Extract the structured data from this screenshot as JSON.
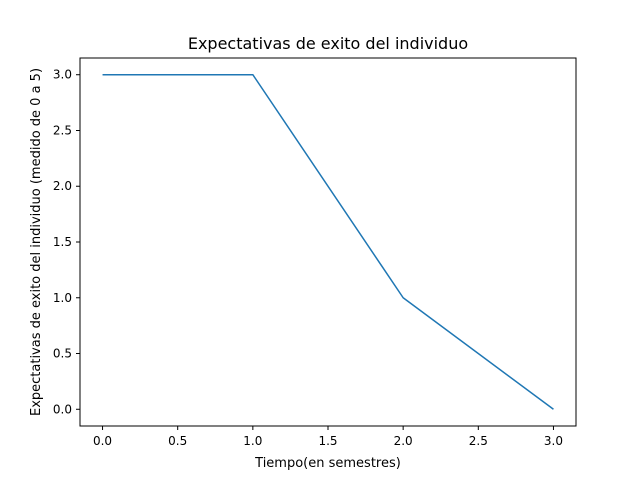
{
  "chart_data": {
    "type": "line",
    "title": "Expectativas de exito del individuo",
    "xlabel": "Tiempo(en semestres)",
    "ylabel": "Expectativas de exito del individuo (medido de 0 a 5)",
    "xlim": [
      -0.15,
      3.15
    ],
    "ylim": [
      -0.15,
      3.15
    ],
    "x_ticks": [
      0.0,
      0.5,
      1.0,
      1.5,
      2.0,
      2.5,
      3.0
    ],
    "x_tick_labels": [
      "0.0",
      "0.5",
      "1.0",
      "1.5",
      "2.0",
      "2.5",
      "3.0"
    ],
    "y_ticks": [
      0.0,
      0.5,
      1.0,
      1.5,
      2.0,
      2.5,
      3.0
    ],
    "y_tick_labels": [
      "0.0",
      "0.5",
      "1.0",
      "1.5",
      "2.0",
      "2.5",
      "3.0"
    ],
    "grid": false,
    "series": [
      {
        "color": "#1f77b4",
        "x": [
          0,
          1,
          2,
          3
        ],
        "y": [
          3,
          3,
          1,
          0
        ]
      }
    ]
  }
}
